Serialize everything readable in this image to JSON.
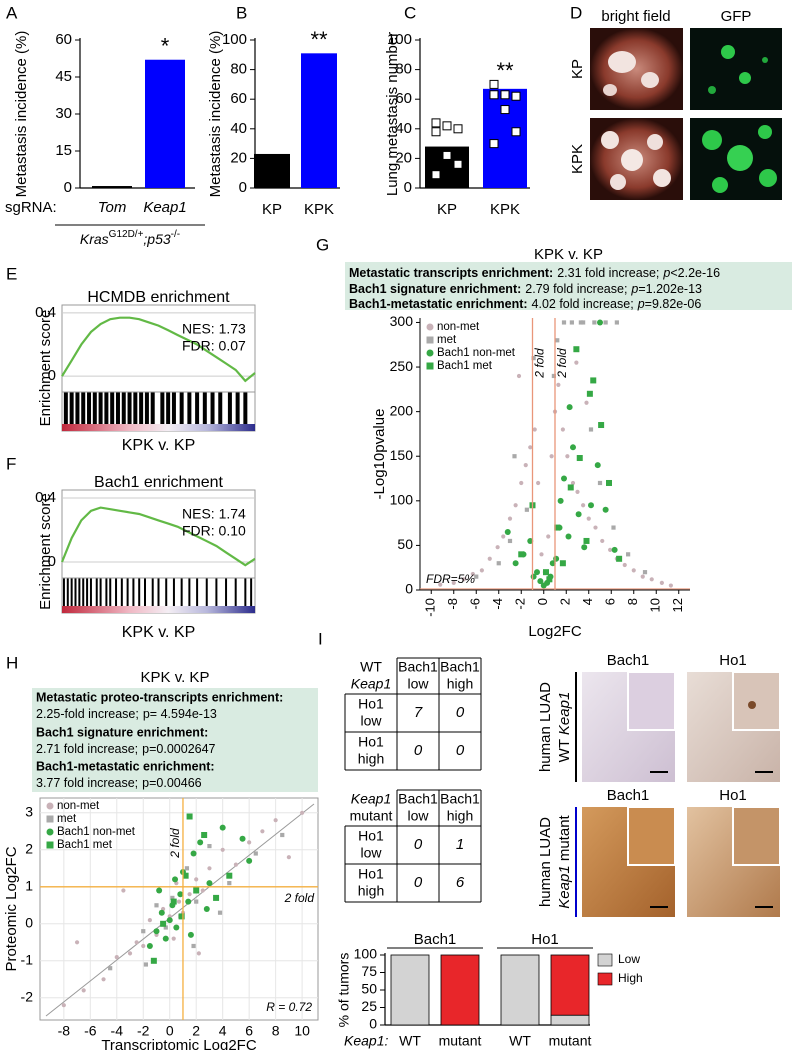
{
  "panel_labels": [
    "A",
    "B",
    "C",
    "D",
    "E",
    "F",
    "G",
    "H",
    "I"
  ],
  "chart_data": [
    {
      "type": "bar",
      "ylabel": "Metastasis incidence (%)",
      "x_prefix": "sgRNA:",
      "categories": [
        "Tom",
        "Keap1"
      ],
      "values": [
        0.8,
        52
      ],
      "colors": [
        "#000000",
        "#0000ff"
      ],
      "ylim": [
        0,
        60
      ],
      "yticks": [
        0,
        15,
        30,
        45,
        60
      ],
      "annotation": "*",
      "genotype": [
        "Kras",
        "G12D/+",
        ";p53",
        "-/-"
      ]
    },
    {
      "type": "bar",
      "ylabel": "Metastasis incidence (%)",
      "categories": [
        "KP",
        "KPK"
      ],
      "values": [
        23,
        91
      ],
      "colors": [
        "#000000",
        "#0000ff"
      ],
      "ylim": [
        0,
        100
      ],
      "yticks": [
        0,
        20,
        40,
        60,
        80,
        100
      ],
      "annotation": "**"
    },
    {
      "type": "bar",
      "ylabel": "Lung metastasis number",
      "categories": [
        "KP",
        "KPK"
      ],
      "values": [
        28,
        67
      ],
      "colors": [
        "#000000",
        "#0000ff"
      ],
      "ylim": [
        0,
        100
      ],
      "yticks": [
        0,
        20,
        40,
        60,
        80,
        100
      ],
      "annotation": "**",
      "points": [
        [
          44,
          42,
          40,
          38,
          22,
          16,
          9
        ],
        [
          70,
          63,
          62,
          63,
          53,
          38,
          30
        ]
      ]
    },
    {
      "type": "line",
      "title": "HCMDB enrichment",
      "ylabel": "Enrichment score",
      "xlabel": "KPK v. KP",
      "stats": [
        "NES: 1.73",
        "FDR: 0.07"
      ],
      "color": "#62b946",
      "ylim": [
        -0.1,
        0.45
      ],
      "yticks": [
        0,
        0.4
      ],
      "values": [
        0,
        0.1,
        0.2,
        0.28,
        0.33,
        0.36,
        0.37,
        0.37,
        0.36,
        0.34,
        0.32,
        0.29,
        0.26,
        0.23,
        0.2,
        0.16,
        0.12,
        0.08,
        0.04,
        -0.03,
        0.02
      ],
      "hits": [
        0.02,
        0.05,
        0.08,
        0.11,
        0.14,
        0.17,
        0.2,
        0.23,
        0.26,
        0.29,
        0.32,
        0.35,
        0.38,
        0.41,
        0.44,
        0.47,
        0.52,
        0.55,
        0.58,
        0.62,
        0.66,
        0.7,
        0.74,
        0.78,
        0.82,
        0.87,
        0.91,
        0.95
      ]
    },
    {
      "type": "line",
      "title": "Bach1 enrichment",
      "ylabel": "Enrichment score",
      "xlabel": "KPK v. KP",
      "stats": [
        "NES: 1.74",
        "FDR: 0.10"
      ],
      "color": "#62b946",
      "ylim": [
        -0.1,
        0.45
      ],
      "yticks": [
        0,
        0.4
      ],
      "values": [
        0,
        0.15,
        0.26,
        0.32,
        0.34,
        0.33,
        0.32,
        0.31,
        0.3,
        0.28,
        0.26,
        0.24,
        0.22,
        0.19,
        0.16,
        0.13,
        0.1,
        0.06,
        0.02,
        -0.02,
        0.02
      ],
      "hits": [
        0.01,
        0.03,
        0.05,
        0.07,
        0.09,
        0.11,
        0.13,
        0.15,
        0.18,
        0.2,
        0.23,
        0.25,
        0.28,
        0.31,
        0.34,
        0.37,
        0.4,
        0.43,
        0.47,
        0.5,
        0.54,
        0.58,
        0.62,
        0.66,
        0.7,
        0.75,
        0.8,
        0.85,
        0.9,
        0.95,
        0.98
      ]
    },
    {
      "type": "scatter",
      "title": "KPK v. KP",
      "stats": [
        {
          "label": "Metastatic transcripts enrichment:",
          "text": "2.31 fold increase;",
          "p": "p",
          "value": "<2.2e-16"
        },
        {
          "label": "Bach1 signature enrichment:",
          "text": "2.79 fold increase;",
          "p": "p",
          "value": "=1.202e-13"
        },
        {
          "label": "Bach1-metastatic enrichment:",
          "text": "4.02 fold increase;",
          "p": "p",
          "value": "=9.82e-06"
        }
      ],
      "ylabel": "-Log10pvalue",
      "xlabel": "Log2FC",
      "xlim": [
        -11,
        13
      ],
      "xticks": [
        -10,
        -8,
        -6,
        -4,
        -2,
        0,
        2,
        4,
        6,
        8,
        10,
        12
      ],
      "ylim": [
        0,
        305
      ],
      "yticks": [
        0,
        50,
        100,
        150,
        200,
        250,
        300
      ],
      "vlines": [
        -1,
        1
      ],
      "line_label": "2 fold",
      "line_color": "#e9967a",
      "fdr": 1.3,
      "fdr_label": "FDR=5%",
      "grid": false,
      "series": [
        {
          "name": "non-met",
          "color": "#c9b2b8",
          "marker": "circle",
          "x": [
            -9.2,
            -8,
            -7.1,
            -6.3,
            -5.5,
            -4.8,
            -4.1,
            -3.6,
            -3,
            -2.5,
            -2,
            -1.6,
            -1.2,
            -0.8,
            -0.5,
            -0.2,
            0.1,
            0.4,
            0.7,
            1,
            1.3,
            1.7,
            2.1,
            2.6,
            3,
            3.5,
            4,
            4.6,
            5.2,
            5.9,
            6.5,
            7.2,
            8,
            8.8,
            9.6,
            10.5,
            11.3,
            2.9,
            3.8,
            -2.2
          ],
          "values": [
            6,
            8,
            12,
            18,
            22,
            35,
            48,
            60,
            80,
            95,
            120,
            140,
            160,
            180,
            120,
            40,
            20,
            60,
            150,
            200,
            230,
            180,
            150,
            120,
            110,
            95,
            80,
            70,
            55,
            45,
            35,
            28,
            22,
            15,
            12,
            8,
            5,
            255,
            210,
            240
          ]
        },
        {
          "name": "met",
          "color": "#a9a9a9",
          "marker": "square",
          "x": [
            -6,
            -4,
            -3,
            -1.5,
            -0.9,
            1.2,
            1.8,
            2.5,
            3.3,
            4.2,
            5,
            6.2,
            7.5,
            9,
            3.5,
            4.5,
            5.5,
            6.5,
            -2.6,
            0.9
          ],
          "values": [
            15,
            30,
            55,
            90,
            260,
            280,
            300,
            300,
            300,
            180,
            120,
            70,
            40,
            20,
            300,
            300,
            300,
            300,
            150,
            240
          ]
        },
        {
          "name": "Bach1 non-met",
          "color": "#35a845",
          "marker": "circle",
          "x": [
            -2.5,
            -1.8,
            -1.2,
            -0.6,
            -0.3,
            0,
            0.3,
            0.6,
            1.1,
            1.5,
            1.8,
            2.2,
            2.6,
            3.1,
            3.6,
            4.2,
            4.8,
            5.5,
            6.3,
            -3.2,
            2.3,
            1.4,
            0.8,
            -0.9,
            5
          ],
          "values": [
            30,
            40,
            55,
            20,
            10,
            5,
            8,
            15,
            35,
            100,
            125,
            60,
            160,
            85,
            48,
            95,
            140,
            90,
            45,
            65,
            205,
            70,
            30,
            15,
            300
          ]
        },
        {
          "name": "Bach1 met",
          "color": "#35a845",
          "marker": "square",
          "x": [
            -1,
            0.5,
            1.7,
            2.4,
            3.2,
            4.1,
            5.1,
            5.8,
            6.7,
            2.9,
            -2,
            0.2,
            1.2,
            3.8,
            4.4
          ],
          "values": [
            95,
            12,
            30,
            115,
            148,
            220,
            185,
            120,
            35,
            270,
            40,
            20,
            70,
            55,
            235
          ]
        }
      ]
    },
    {
      "type": "scatter",
      "title": "KPK v. KP",
      "stats": [
        {
          "label": "Metastatic proteo-transcripts enrichment:",
          "text": "2.25-fold increase;",
          "p": "p",
          "value": "= 4.594e-13"
        },
        {
          "label": "Bach1 signature enrichment:",
          "text": "2.71 fold increase;",
          "p": "p",
          "value": "=0.0002647"
        },
        {
          "label": "Bach1-metastatic enrichment:",
          "text": "3.77 fold increase;",
          "p": "p",
          "value": "=0.00466"
        }
      ],
      "ylabel": "Proteomic Log2FC",
      "xlabel": "Transcriptomic Log2FC",
      "xlim": [
        -9.8,
        11.2
      ],
      "xticks": [
        -8,
        -6,
        -4,
        -2,
        0,
        2,
        4,
        6,
        8,
        10
      ],
      "ylim": [
        -2.6,
        3.4
      ],
      "yticks": [
        -2,
        -1,
        0,
        1,
        2,
        3
      ],
      "vlines": [
        1
      ],
      "hlines": [
        1
      ],
      "line_label": "2 fold",
      "line_color": "#f5b041",
      "annotation": "R = 0.72",
      "grid": true,
      "series": [
        {
          "name": "non-met",
          "color": "#c9b2b8",
          "marker": "circle",
          "x": [
            -8,
            -6.5,
            -5,
            -4,
            -3,
            -2.5,
            -2,
            -1.5,
            -1,
            -0.5,
            0,
            0.3,
            0.7,
            1,
            1.5,
            2,
            2.5,
            3,
            3.5,
            4,
            5,
            6,
            7,
            8,
            9,
            10,
            -7,
            -3.5,
            2.2,
            0.5
          ],
          "values": [
            -2.2,
            -1.8,
            -1.5,
            -0.9,
            -0.8,
            -0.5,
            -0.6,
            0.1,
            -0.3,
            0.4,
            0.2,
            -0.4,
            0.6,
            0.3,
            0.8,
            1.2,
            0.9,
            1.5,
            0.7,
            2,
            1.6,
            2.2,
            2.5,
            2.8,
            1.8,
            3,
            -0.5,
            0.9,
            -0.8,
            1.1
          ]
        },
        {
          "name": "met",
          "color": "#a9a9a9",
          "marker": "square",
          "x": [
            -4.5,
            -2,
            -1,
            -0.3,
            0.2,
            0.8,
            1.3,
            2,
            3,
            4.5,
            6.5,
            8.5,
            -1.8,
            1.8,
            3.8
          ],
          "values": [
            -1.2,
            -0.2,
            0.5,
            -0.1,
            0.7,
            0.2,
            1.5,
            0.6,
            2.1,
            1.1,
            1.9,
            2.4,
            -1.1,
            -0.6,
            0.3
          ]
        },
        {
          "name": "Bach1 non-met",
          "color": "#35a845",
          "marker": "circle",
          "x": [
            -1.5,
            -1,
            -0.6,
            -0.3,
            0,
            0.2,
            0.5,
            0.8,
            1,
            1.4,
            1.8,
            2.3,
            3,
            4,
            5.5,
            -0.8,
            0.4,
            1.6,
            2.8,
            6
          ],
          "values": [
            -0.6,
            -0.2,
            0.3,
            -0.4,
            0.1,
            0.5,
            -0.1,
            0.8,
            1.4,
            0.6,
            1.9,
            2.2,
            1.1,
            2.6,
            2.3,
            0.9,
            1.2,
            -0.3,
            0.4,
            1.7
          ]
        },
        {
          "name": "Bach1 met",
          "color": "#35a845",
          "marker": "square",
          "x": [
            -0.5,
            0.3,
            1.2,
            2,
            2.6,
            3.5,
            4.5,
            -1.2,
            0.9,
            1.5
          ],
          "values": [
            0,
            0.6,
            1.3,
            0.9,
            2.4,
            0.7,
            1.3,
            -1,
            0.2,
            2.9
          ]
        }
      ]
    },
    {
      "type": "bar",
      "stacked": true,
      "ylabel": "% of tumors",
      "x_prefix": "Keap1:",
      "groups": [
        "Bach1",
        "Ho1"
      ],
      "categories": [
        "WT",
        "mutant",
        "WT",
        "mutant"
      ],
      "ylim": [
        0,
        100
      ],
      "yticks": [
        0,
        25,
        50,
        75,
        100
      ],
      "series": [
        {
          "name": "Low",
          "color": "#d3d3d3",
          "values": [
            100,
            0,
            100,
            14
          ]
        },
        {
          "name": "High",
          "color": "#e8262a",
          "values": [
            0,
            100,
            0,
            86
          ]
        }
      ]
    }
  ],
  "panel_d": {
    "columns": [
      "bright field",
      "GFP"
    ],
    "rows": [
      "KP",
      "KPK"
    ]
  },
  "panel_i": {
    "tables": [
      {
        "corner": [
          "WT",
          "Keap1"
        ],
        "columns": [
          [
            "Bach1",
            "low"
          ],
          [
            "Bach1",
            "high"
          ]
        ],
        "rows": [
          {
            "label": [
              "Ho1",
              "low"
            ],
            "cells": [
              7,
              0
            ]
          },
          {
            "label": [
              "Ho1",
              "high"
            ],
            "cells": [
              0,
              0
            ]
          }
        ]
      },
      {
        "corner": [
          "Keap1",
          "mutant"
        ],
        "columns": [
          [
            "Bach1",
            "low"
          ],
          [
            "Bach1",
            "high"
          ]
        ],
        "rows": [
          {
            "label": [
              "Ho1",
              "low"
            ],
            "cells": [
              0,
              1
            ]
          },
          {
            "label": [
              "Ho1",
              "high"
            ],
            "cells": [
              0,
              6
            ]
          }
        ]
      }
    ],
    "image_columns": [
      "Bach1",
      "Ho1"
    ],
    "image_rows": [
      {
        "line1": "human LUAD",
        "line2": [
          "WT",
          "Keap1"
        ]
      },
      {
        "line1": "human LUAD",
        "line2": [
          "Keap1",
          "mutant"
        ]
      }
    ]
  }
}
